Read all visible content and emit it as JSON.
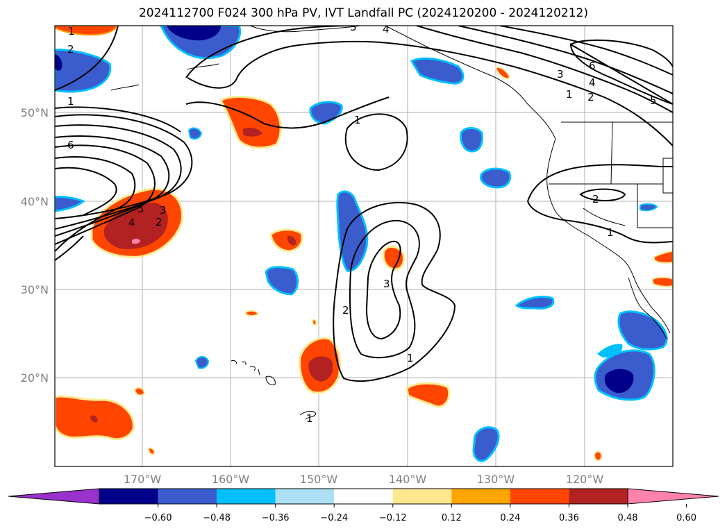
{
  "title": "2024112700 F024 300 hPa PV, IVT Landfall PC (2024120200 - 2024120212)",
  "lon_labels": [
    "170°W",
    "160°W",
    "150°W",
    "140°W",
    "130°W",
    "120°W"
  ],
  "lat_labels": [
    "50°N",
    "40°N",
    "30°N",
    "20°N"
  ],
  "colorbar": {
    "ticks": [
      "−0.60",
      "−0.48",
      "−0.36",
      "−0.24",
      "−0.12",
      "0.12",
      "0.24",
      "0.36",
      "0.48",
      "0.60"
    ],
    "colors": [
      "#9932CC",
      "#00008B",
      "#3A5CCC",
      "#00BFFF",
      "#ADE0F5",
      "#FFFFFF",
      "#FFE98F",
      "#FFA500",
      "#FF4500",
      "#B22222",
      "#FF82AB"
    ]
  },
  "contour_labels": {
    "c1a": "1",
    "c2a": "2",
    "c1b": "1",
    "c6a": "6",
    "c5": "4",
    "c4": "5",
    "c3": "3",
    "c2b": "2",
    "c1c": "1",
    "c2c": "2",
    "c3b": "3",
    "c1d": "1",
    "c3c": "3",
    "c4b": "4",
    "c1e": "1",
    "c2d": "2",
    "c6b": "6",
    "c5b": "5",
    "c2e": "2",
    "c1f": "1",
    "c1g": "1",
    "c4c": "4",
    "c3d": "3"
  },
  "colors": {
    "blue_fill": "#3A5CCC",
    "navy_fill": "#00008B",
    "cyan_fill": "#00BFFF",
    "red_fill": "#FF4500",
    "darkred_fill": "#B22222",
    "pink_fill": "#FF82AB",
    "yellow_edge": "#FFE98F",
    "grid": "#b0b0b0"
  }
}
